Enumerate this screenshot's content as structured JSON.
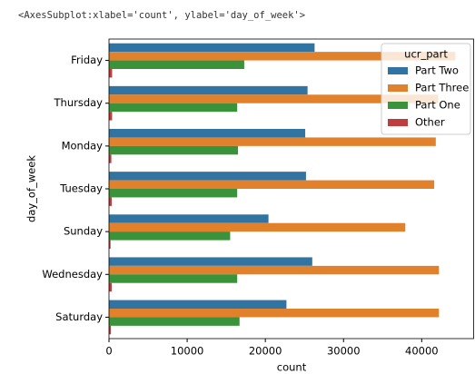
{
  "output_text": "<AxesSubplot:xlabel='count', ylabel='day_of_week'>",
  "chart_data": {
    "type": "barh",
    "xlabel": "count",
    "ylabel": "day_of_week",
    "categories": [
      "Friday",
      "Thursday",
      "Monday",
      "Tuesday",
      "Sunday",
      "Wednesday",
      "Saturday"
    ],
    "series": [
      {
        "name": "Part Two",
        "color": "#3274a1",
        "values": [
          26300,
          25400,
          25100,
          25200,
          20400,
          26000,
          22700
        ]
      },
      {
        "name": "Part Three",
        "color": "#e1812c",
        "values": [
          44300,
          42100,
          41800,
          41600,
          37900,
          42200,
          42200
        ]
      },
      {
        "name": "Part One",
        "color": "#3a923a",
        "values": [
          17300,
          16400,
          16500,
          16400,
          15500,
          16400,
          16700
        ]
      },
      {
        "name": "Other",
        "color": "#c03d3e",
        "values": [
          400,
          400,
          300,
          350,
          200,
          350,
          250
        ]
      }
    ],
    "legend_title": "ucr_part",
    "legend": "upper right",
    "xlim": [
      0,
      46700
    ],
    "xticks": [
      0,
      10000,
      20000,
      30000,
      40000
    ]
  }
}
